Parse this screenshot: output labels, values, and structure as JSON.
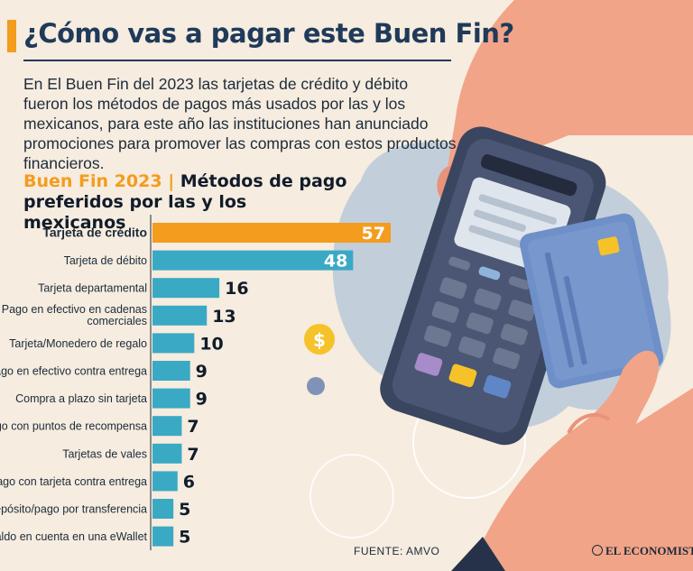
{
  "header": {
    "title": "¿Cómo vas a pagar este Buen Fin?",
    "intro": "En El Buen Fin del 2023 las tarjetas de crédito y débito fueron los métodos de pagos más usados por las y los mexicanos, para este año las instituciones han anunciado promociones para promover las compras con estos productos financieros."
  },
  "chart_title": {
    "highlight": "Buen Fin 2023",
    "separator": "|",
    "line1_rest": "Métodos de pago",
    "line2": "preferidos por las y los mexicanos"
  },
  "chart_data": {
    "type": "bar",
    "orientation": "horizontal",
    "title": "Buen Fin 2023 | Métodos de pago preferidos por las y los mexicanos",
    "categories": [
      "Tarjeta de crédito",
      "Tarjeta de débito",
      "Tarjeta departamental",
      "Pago en efectivo en cadenas comerciales",
      "Tarjeta/Monedero de regalo",
      "Pago en efectivo contra entrega",
      "Compra a plazo sin tarjeta",
      "Pago con puntos de recompensa",
      "Tarjetas de vales",
      "Pago con tarjeta contra entrega",
      "Depósito/pago por transferencia",
      "Saldo en cuenta en una eWallet"
    ],
    "values": [
      57,
      48,
      16,
      13,
      10,
      9,
      9,
      7,
      7,
      6,
      5,
      5
    ],
    "bar_colors": [
      "#f39c1e",
      "#3aa9c4",
      "#3aa9c4",
      "#3aa9c4",
      "#3aa9c4",
      "#3aa9c4",
      "#3aa9c4",
      "#3aa9c4",
      "#3aa9c4",
      "#3aa9c4",
      "#3aa9c4",
      "#3aa9c4"
    ],
    "xlim": [
      0,
      57
    ],
    "grid": false,
    "legend": "none"
  },
  "footer": {
    "source": "FUENTE: AMVO",
    "brand": "EL ECONOMISTA"
  },
  "colors": {
    "background": "#f6ecdf",
    "accent_orange": "#f39c1e",
    "bar_teal": "#3aa9c4",
    "title_navy": "#1f3a5a"
  }
}
